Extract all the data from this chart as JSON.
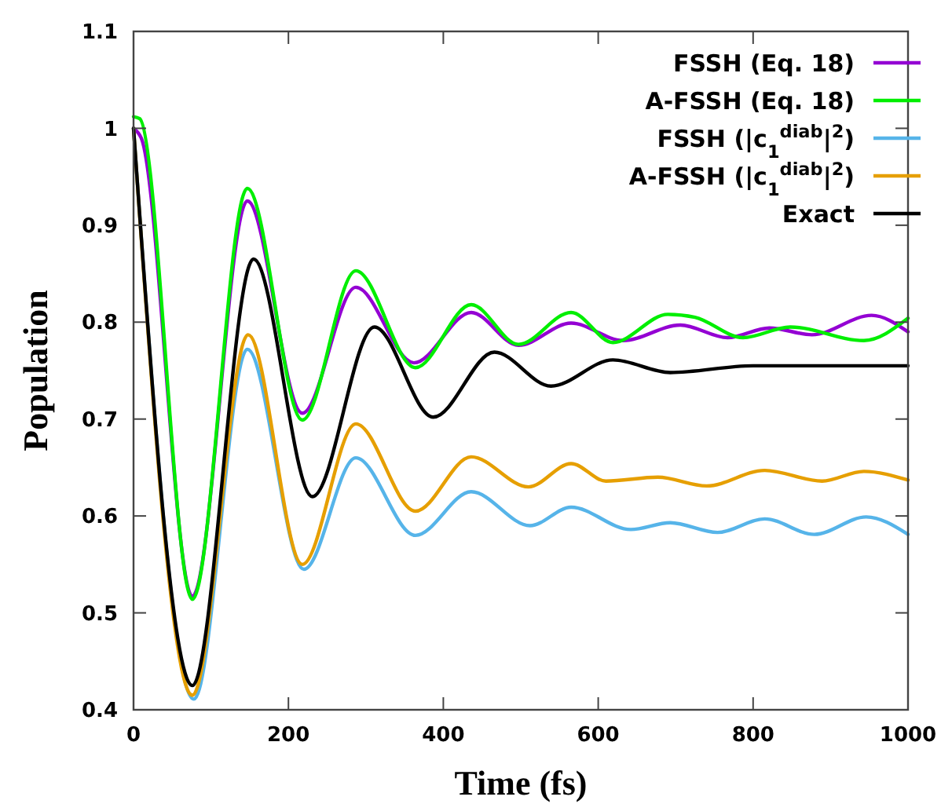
{
  "chart_data": {
    "type": "line",
    "xlabel": "Time (fs)",
    "ylabel": "Population",
    "xlim": [
      0,
      1000
    ],
    "xticks": [
      0,
      200,
      400,
      600,
      800,
      1000
    ],
    "ylim": [
      0.4,
      1.1
    ],
    "yticks": [
      0.4,
      0.5,
      0.6,
      0.7,
      0.8,
      0.9,
      1,
      1.1
    ],
    "legend": "top right",
    "grid": false,
    "line_style": "solid",
    "marker": "none",
    "series": [
      {
        "name": "FSSH (Eq. 18)",
        "color": "#9400d3",
        "x": [
          0,
          10,
          76,
          147,
          218,
          287,
          362,
          436,
          497,
          565,
          632,
          706,
          767,
          821,
          876,
          953,
          1000
        ],
        "values": [
          1.0,
          0.99,
          0.517,
          0.925,
          0.706,
          0.836,
          0.758,
          0.81,
          0.776,
          0.799,
          0.781,
          0.797,
          0.784,
          0.794,
          0.787,
          0.807,
          0.79
        ]
      },
      {
        "name": "A-FSSH (Eq. 18)",
        "color": "#00ee00",
        "x": [
          0,
          8,
          76,
          147,
          218,
          287,
          364,
          436,
          497,
          565,
          619,
          690,
          725,
          787,
          848,
          943,
          1000
        ],
        "values": [
          1.012,
          1.01,
          0.514,
          0.938,
          0.699,
          0.853,
          0.753,
          0.818,
          0.777,
          0.81,
          0.779,
          0.808,
          0.805,
          0.784,
          0.795,
          0.781,
          0.804
        ]
      },
      {
        "name": "FSSH (|c$_{1}$$^{diab}$|$^{2}$)",
        "color": "#56b4e9",
        "x": [
          0,
          78,
          147,
          220,
          287,
          364,
          436,
          512,
          565,
          642,
          693,
          754,
          815,
          879,
          946,
          1000
        ],
        "values": [
          1.0,
          0.411,
          0.772,
          0.545,
          0.66,
          0.58,
          0.625,
          0.59,
          0.609,
          0.586,
          0.593,
          0.583,
          0.597,
          0.581,
          0.599,
          0.581
        ]
      },
      {
        "name": "A-FSSH (|c$_{1}$$^{diab}$|$^{2}$)",
        "color": "#e69f00",
        "x": [
          0,
          76,
          148,
          218,
          287,
          364,
          436,
          510,
          565,
          610,
          677,
          740,
          815,
          889,
          943,
          1000
        ],
        "values": [
          1.0,
          0.415,
          0.787,
          0.55,
          0.695,
          0.605,
          0.661,
          0.63,
          0.654,
          0.636,
          0.64,
          0.631,
          0.647,
          0.636,
          0.646,
          0.637
        ]
      },
      {
        "name": "Exact",
        "color": "#000000",
        "x": [
          0,
          76,
          155,
          231,
          311,
          387,
          466,
          539,
          619,
          693,
          800,
          1000
        ],
        "values": [
          1.0,
          0.425,
          0.865,
          0.62,
          0.795,
          0.702,
          0.769,
          0.734,
          0.761,
          0.748,
          0.755,
          0.755
        ]
      }
    ]
  }
}
